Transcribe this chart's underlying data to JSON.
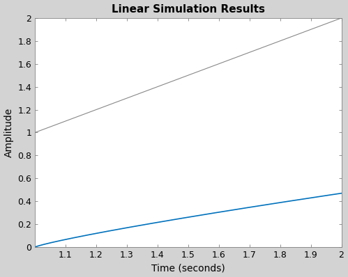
{
  "title": "Linear Simulation Results",
  "xlabel": "Time (seconds)",
  "ylabel": "Amplitude",
  "xlim": [
    1.0,
    2.0
  ],
  "ylim": [
    0,
    2
  ],
  "xticks": [
    1.1,
    1.2,
    1.3,
    1.4,
    1.5,
    1.6,
    1.7,
    1.8,
    1.9,
    2.0
  ],
  "yticks": [
    0,
    0.2,
    0.4,
    0.6,
    0.8,
    1.0,
    1.2,
    1.4,
    1.6,
    1.8,
    2.0
  ],
  "ramp_color": "#888888",
  "response_color": "#0072BD",
  "ramp_linewidth": 0.8,
  "response_linewidth": 1.2,
  "background_color": "#D3D3D3",
  "axes_background": "#FFFFFF",
  "title_fontsize": 11,
  "axis_label_fontsize": 10,
  "tick_fontsize": 9,
  "t_start": 1.0,
  "t_end": 2.0,
  "num_points": 500,
  "response_K": 0.5,
  "response_tau": 2.5
}
